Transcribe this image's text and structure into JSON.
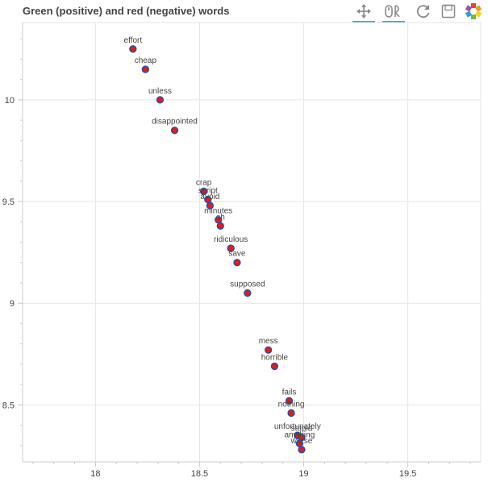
{
  "chart_data": {
    "type": "scatter",
    "title": "Green (positive) and red (negative) words",
    "xlabel": "",
    "ylabel": "",
    "xlim": [
      17.65,
      19.85
    ],
    "ylim": [
      8.22,
      10.38
    ],
    "xticks": [
      18,
      18.5,
      19,
      19.5
    ],
    "xtick_labels": [
      "18",
      "18.5",
      "19",
      "19.5"
    ],
    "yticks": [
      8.5,
      9,
      9.5,
      10
    ],
    "ytick_labels": [
      "8.5",
      "9",
      "9.5",
      "10"
    ],
    "grid": true,
    "marker_fill": "#e31a1c",
    "marker_stroke": "#1f4fa8",
    "points": [
      {
        "label": "effort",
        "x": 18.18,
        "y": 10.25
      },
      {
        "label": "cheap",
        "x": 18.24,
        "y": 10.15
      },
      {
        "label": "unless",
        "x": 18.31,
        "y": 10.0
      },
      {
        "label": "disappointed",
        "x": 18.38,
        "y": 9.85
      },
      {
        "label": "crap",
        "x": 18.52,
        "y": 9.55
      },
      {
        "label": "script",
        "x": 18.54,
        "y": 9.51
      },
      {
        "label": "avoid",
        "x": 18.55,
        "y": 9.48
      },
      {
        "label": "minutes",
        "x": 18.59,
        "y": 9.41
      },
      {
        "label": "oh",
        "x": 18.6,
        "y": 9.38
      },
      {
        "label": "ridiculous",
        "x": 18.65,
        "y": 9.27
      },
      {
        "label": "save",
        "x": 18.68,
        "y": 9.2
      },
      {
        "label": "supposed",
        "x": 18.73,
        "y": 9.05
      },
      {
        "label": "mess",
        "x": 18.83,
        "y": 8.77
      },
      {
        "label": "horrible",
        "x": 18.86,
        "y": 8.69
      },
      {
        "label": "fails",
        "x": 18.93,
        "y": 8.52
      },
      {
        "label": "nothing",
        "x": 18.94,
        "y": 8.46
      },
      {
        "label": "unfortunately",
        "x": 18.97,
        "y": 8.35
      },
      {
        "label": "anything",
        "x": 18.98,
        "y": 8.31
      },
      {
        "label": "stupid",
        "x": 18.99,
        "y": 8.34
      },
      {
        "label": "worse",
        "x": 18.99,
        "y": 8.28
      }
    ]
  },
  "toolbar": {
    "active_color": "#26aae1",
    "tools": [
      {
        "name": "pan-icon",
        "active": true
      },
      {
        "name": "wheel-zoom-icon",
        "active": true
      },
      {
        "name": "reset-icon",
        "active": false
      },
      {
        "name": "save-icon",
        "active": false
      },
      {
        "name": "bokeh-logo-icon",
        "active": false
      }
    ]
  }
}
